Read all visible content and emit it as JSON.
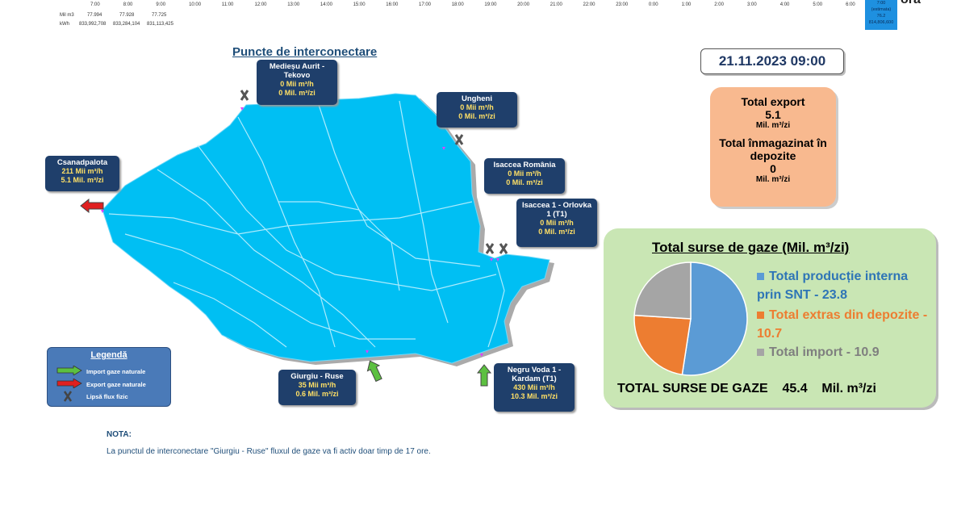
{
  "top_strip": {
    "hours": [
      "7:00",
      "8:00",
      "9:00",
      "10:00",
      "11:00",
      "12:00",
      "13:00",
      "14:00",
      "15:00",
      "16:00",
      "17:00",
      "18:00",
      "19:00",
      "20:00",
      "21:00",
      "22:00",
      "23:00",
      "0:00",
      "1:00",
      "2:00",
      "3:00",
      "4:00",
      "5:00",
      "6:00"
    ],
    "row1_label": "Mil m3",
    "row2_label": "kWh",
    "row1_values": [
      "77.994",
      "77.928",
      "77.725"
    ],
    "row2_values": [
      "833,992,708",
      "833,284,104",
      "831,113,425"
    ],
    "est_box": {
      "line1": "7:00",
      "line2": "(estimata)",
      "line3": "76.2",
      "line4": "814,806,600"
    },
    "ora_label": "ora"
  },
  "map_title": "Puncte de interconectare",
  "date_time": "21.11.2023 09:00",
  "points": {
    "medieseu": {
      "name": "Medieșu Aurit - Tekovo",
      "flow_h": "0 Mii  m³/h",
      "flow_zi": "0 Mil. m³/zi"
    },
    "ungheni": {
      "name": "Ungheni",
      "flow_h": "0 Mii  m³/h",
      "flow_zi": "0 Mil. m³/zi"
    },
    "csanadpalota": {
      "name": "Csanadpalota",
      "flow_h": "211 Mii  m³/h",
      "flow_zi": "5.1 Mil. m³/zi"
    },
    "isaccea_ro": {
      "name": "Isaccea România",
      "flow_h": "0 Mii  m³/h",
      "flow_zi": "0 Mil. m³/zi"
    },
    "isaccea_1": {
      "name": "Isaccea 1 - Orlovka 1 (T1)",
      "flow_h": "0 Mii  m³/h",
      "flow_zi": "0 Mil. m³/zi"
    },
    "giurgiu": {
      "name": "Giurgiu - Ruse",
      "flow_h": "35 Mii  m³/h",
      "flow_zi": "0.6 Mil. m³/zi"
    },
    "negru_voda": {
      "name": "Negru Voda 1 - Kardam (T1)",
      "flow_h": "430 Mii  m³/h",
      "flow_zi": "10.3 Mil. m³/zi"
    }
  },
  "export_panel": {
    "export_label": "Total export",
    "export_value": "5.1",
    "export_unit": "Mil. m³/zi",
    "storage_label": "Total înmagazinat în depozite",
    "storage_value": "0",
    "storage_unit": "Mil. m³/zi"
  },
  "sources_panel": {
    "title": "Total surse de gaze  (Mil. m³/zi)",
    "legend": [
      {
        "label": "Total producție interna prin SNT - 23.8",
        "color": "#5b9bd5"
      },
      {
        "label": "Total extras din depozite - 10.7",
        "color": "#ed7d31"
      },
      {
        "label": "Total import - 10.9",
        "color": "#a5a5a5"
      }
    ],
    "total_label": "TOTAL SURSE DE GAZE",
    "total_value": "45.4",
    "total_unit": "Mil. m³/zi"
  },
  "chart_data": {
    "type": "pie",
    "categories": [
      "Total producție interna prin SNT",
      "Total extras din depozite",
      "Total import"
    ],
    "values": [
      23.8,
      10.7,
      10.9
    ],
    "colors": [
      "#5b9bd5",
      "#ed7d31",
      "#a5a5a5"
    ],
    "title": ""
  },
  "legend_box": {
    "title": "Legendă",
    "import": "Import gaze naturale",
    "export": "Export gaze naturale",
    "no_flow": "Lipsă flux fizic"
  },
  "nota": {
    "title": "NOTA:",
    "text": "La punctul de interconectare \"Giurgiu - Ruse\" fluxul de gaze va fi activ doar timp de 17 ore."
  }
}
